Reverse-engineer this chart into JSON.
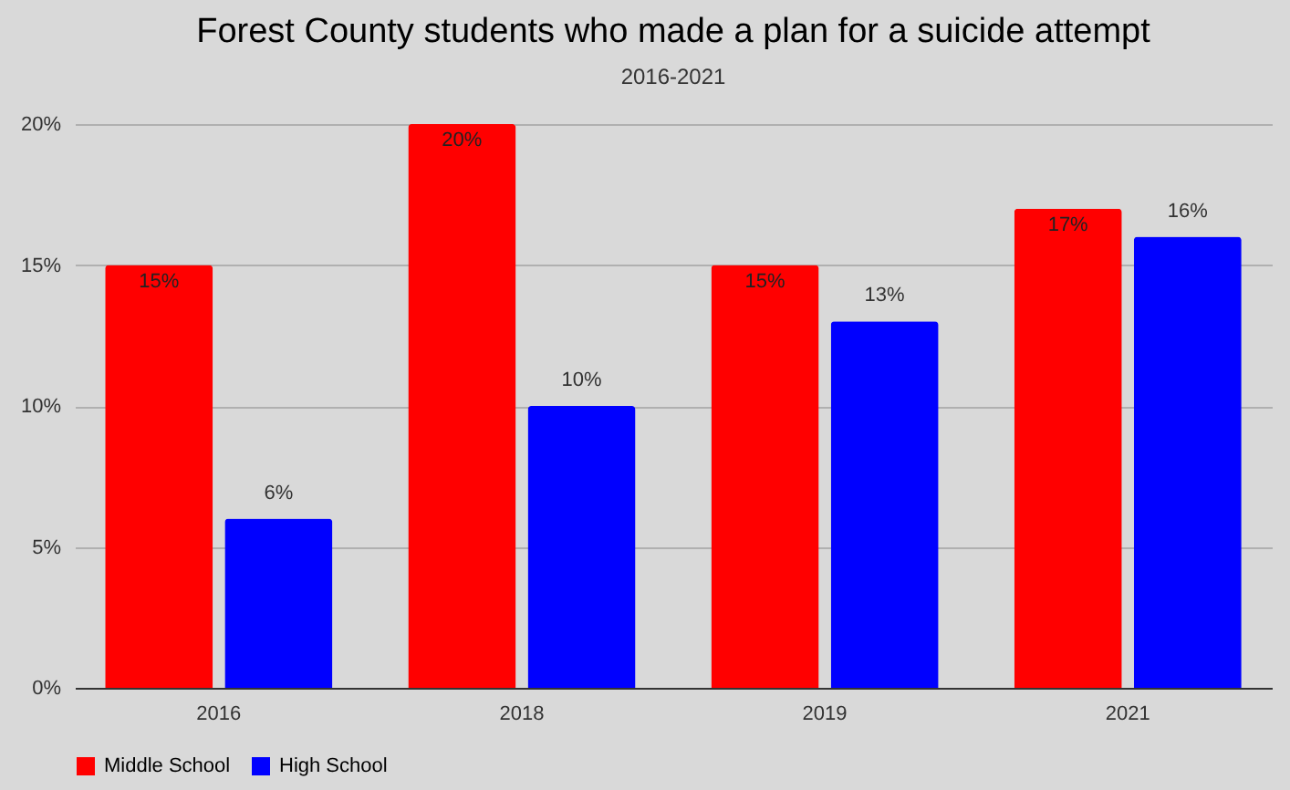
{
  "chart_data": {
    "type": "bar",
    "title": "Forest County students who made a plan for a suicide attempt",
    "subtitle": "2016-2021",
    "categories": [
      "2016",
      "2018",
      "2019",
      "2021"
    ],
    "series": [
      {
        "name": "Middle School",
        "color": "#ff0000",
        "values": [
          15,
          20,
          15,
          17
        ],
        "value_labels": [
          "15%",
          "20%",
          "15%",
          "17%"
        ]
      },
      {
        "name": "High School",
        "color": "#0000ff",
        "values": [
          6,
          10,
          13,
          16
        ],
        "value_labels": [
          "6%",
          "10%",
          "13%",
          "16%"
        ]
      }
    ],
    "ylim": [
      0,
      20
    ],
    "yticks": [
      {
        "value": 0,
        "label": "0%"
      },
      {
        "value": 5,
        "label": "5%"
      },
      {
        "value": 10,
        "label": "10%"
      },
      {
        "value": 15,
        "label": "15%"
      },
      {
        "value": 20,
        "label": "20%"
      }
    ],
    "grid": "y",
    "legend": "bottom"
  }
}
